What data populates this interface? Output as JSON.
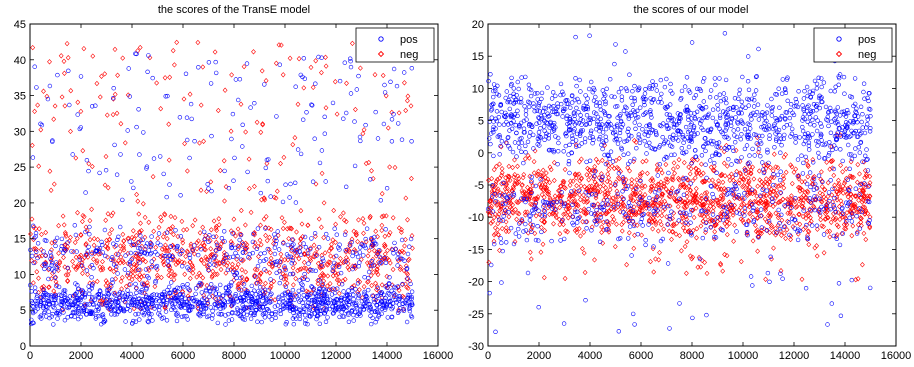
{
  "chart_data": [
    {
      "type": "scatter",
      "title": "the scores of the TransE model",
      "xlim": [
        0,
        16000
      ],
      "ylim": [
        0,
        45
      ],
      "xticks": [
        0,
        2000,
        4000,
        6000,
        8000,
        10000,
        12000,
        14000,
        16000
      ],
      "yticks": [
        0,
        5,
        10,
        15,
        20,
        25,
        30,
        35,
        40,
        45
      ],
      "legend_position": "top-right",
      "grid": false,
      "n_points_x_range": [
        0,
        15000
      ],
      "series": [
        {
          "name": "pos",
          "marker": "circle",
          "color": "#0000ff",
          "bands": [
            {
              "y_low": 3,
              "y_high": 9,
              "density": "very dense"
            },
            {
              "y_low": 9,
              "y_high": 17,
              "density": "medium"
            },
            {
              "y_low": 20,
              "y_high": 41,
              "density": "sparse"
            }
          ]
        },
        {
          "name": "neg",
          "marker": "diamond",
          "color": "#ff0000",
          "bands": [
            {
              "y_low": 5,
              "y_high": 19,
              "density": "dense"
            },
            {
              "y_low": 19,
              "y_high": 43,
              "density": "sparse"
            }
          ]
        }
      ]
    },
    {
      "type": "scatter",
      "title": "the scores of our model",
      "xlim": [
        0,
        16000
      ],
      "ylim": [
        -30,
        20
      ],
      "xticks": [
        0,
        2000,
        4000,
        6000,
        8000,
        10000,
        12000,
        14000,
        16000
      ],
      "yticks": [
        -30,
        -25,
        -20,
        -15,
        -10,
        -5,
        0,
        5,
        10,
        15,
        20
      ],
      "legend_position": "top-right",
      "grid": false,
      "n_points_x_range": [
        0,
        15000
      ],
      "series": [
        {
          "name": "pos",
          "marker": "circle",
          "color": "#0000ff",
          "bands": [
            {
              "y_low": -2,
              "y_high": 12,
              "density": "very dense"
            },
            {
              "y_low": -15,
              "y_high": -2,
              "density": "medium"
            },
            {
              "y_low": -28,
              "y_high": 19,
              "density": "sparse outliers"
            }
          ]
        },
        {
          "name": "neg",
          "marker": "diamond",
          "color": "#ff0000",
          "bands": [
            {
              "y_low": -13,
              "y_high": -1,
              "density": "very dense"
            },
            {
              "y_low": -20,
              "y_high": 3,
              "density": "medium"
            }
          ]
        }
      ]
    }
  ]
}
